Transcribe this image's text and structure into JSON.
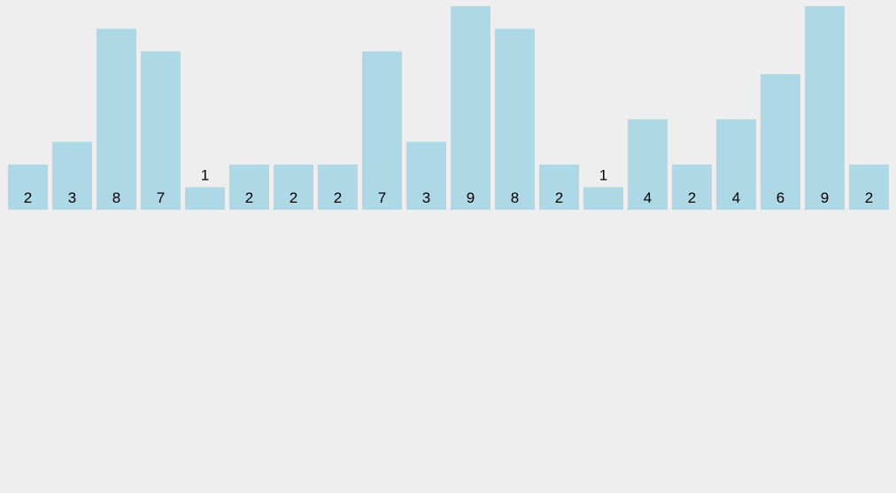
{
  "chart_data": {
    "type": "bar",
    "values": [
      2,
      3,
      8,
      7,
      1,
      2,
      2,
      2,
      7,
      3,
      9,
      8,
      2,
      1,
      4,
      2,
      4,
      6,
      9,
      2
    ],
    "ylim": [
      0,
      9
    ],
    "grid": false,
    "bar_color": "#add8e6",
    "background": "#eeeeee",
    "data_labels": true
  }
}
